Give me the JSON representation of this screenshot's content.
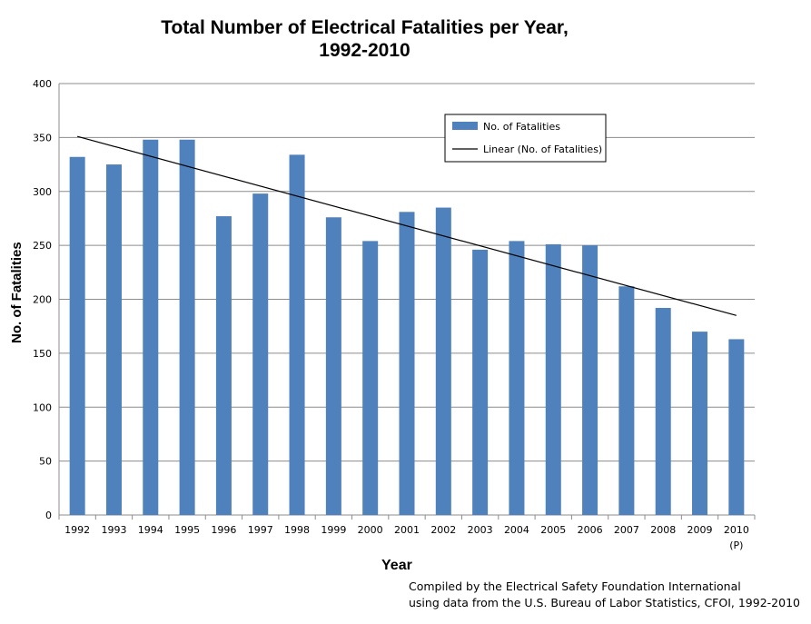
{
  "chart_data": {
    "type": "bar",
    "title_line1": "Total Number of Electrical Fatalities per Year,",
    "title_line2": "1992-2010",
    "xlabel": "Year",
    "ylabel": "No. of Fatalities",
    "categories": [
      "1992",
      "1993",
      "1994",
      "1995",
      "1996",
      "1997",
      "1998",
      "1999",
      "2000",
      "2001",
      "2002",
      "2003",
      "2004",
      "2005",
      "2006",
      "2007",
      "2008",
      "2009",
      "2010"
    ],
    "category_notes": {
      "2010": "(P)"
    },
    "series": [
      {
        "name": "No. of Fatalities",
        "values": [
          332,
          325,
          348,
          348,
          277,
          298,
          334,
          276,
          254,
          281,
          285,
          246,
          254,
          251,
          250,
          212,
          192,
          170,
          163
        ],
        "color": "#4f81bd"
      }
    ],
    "trendline": {
      "name": "Linear (No. of Fatalities)",
      "type": "linear",
      "start_value": 351,
      "end_value": 185,
      "color": "#000000"
    },
    "ylim": [
      0,
      400
    ],
    "yticks": [
      0,
      50,
      100,
      150,
      200,
      250,
      300,
      350,
      400
    ],
    "grid": true,
    "legend_position": "top-right",
    "credit_line1": "Compiled by the Electrical Safety Foundation International",
    "credit_line2": "using data from the U.S. Bureau of Labor Statistics, CFOI, 1992-2010"
  }
}
